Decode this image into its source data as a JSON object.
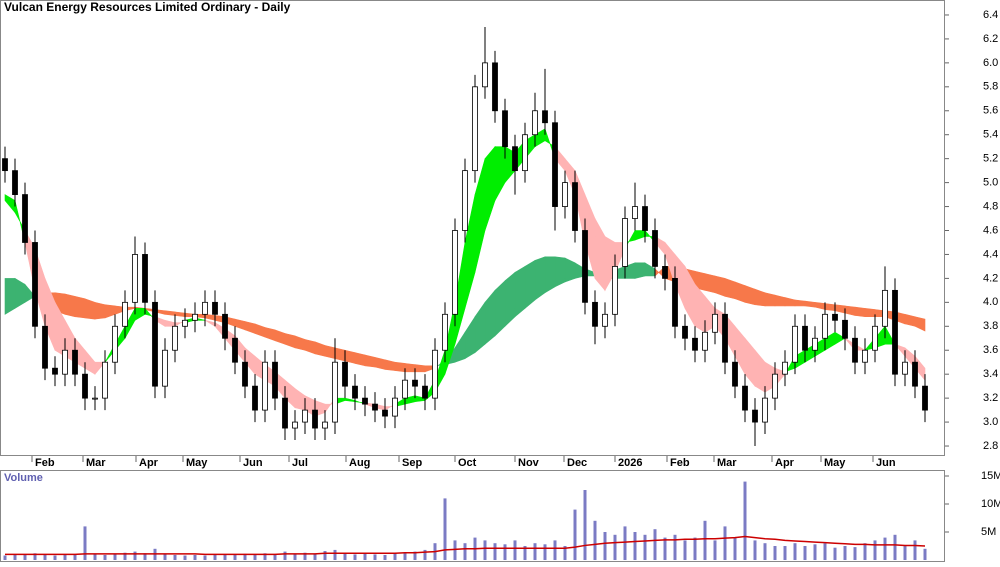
{
  "chart_data": {
    "type": "candlestick",
    "title": "Vulcan Energy Resources Limited Ordinary - Daily",
    "xlim": [
      -0.5,
      94
    ],
    "xticks": [
      {
        "value": 2.7,
        "label": "Feb"
      },
      {
        "value": 7.8,
        "label": "Mar"
      },
      {
        "value": 13.1,
        "label": "Apr"
      },
      {
        "value": 17.8,
        "label": "May"
      },
      {
        "value": 23.5,
        "label": "Jun"
      },
      {
        "value": 28.4,
        "label": "Jul"
      },
      {
        "value": 34.1,
        "label": "Aug"
      },
      {
        "value": 39.4,
        "label": "Sep"
      },
      {
        "value": 45.0,
        "label": "Oct"
      },
      {
        "value": 51.0,
        "label": "Nov"
      },
      {
        "value": 55.9,
        "label": "Dec"
      },
      {
        "value": 61.0,
        "label": "2026"
      },
      {
        "value": 66.2,
        "label": "Feb"
      },
      {
        "value": 70.9,
        "label": "Mar"
      },
      {
        "value": 76.7,
        "label": "Apr"
      },
      {
        "value": 81.6,
        "label": "May"
      },
      {
        "value": 86.8,
        "label": "Jun"
      }
    ],
    "ylim": [
      2.7,
      6.5
    ],
    "yticks": [
      2.8,
      {
        "value": 3.0,
        "label": "3.0"
      },
      3.2,
      3.4,
      3.6,
      3.8,
      {
        "value": 4.0,
        "label": "4.0"
      },
      4.2,
      4.4,
      4.6,
      4.8,
      {
        "value": 5.0,
        "label": "5.0"
      },
      5.2,
      5.4,
      5.6,
      5.8,
      {
        "value": 6.0,
        "label": "6.0"
      },
      6.2,
      6.4
    ],
    "open": [
      5.2,
      5.1,
      4.9,
      4.5,
      3.8,
      3.45,
      3.4,
      3.6,
      3.4,
      3.2,
      3.2,
      3.5,
      3.8,
      4.0,
      4.4,
      4.0,
      3.3,
      3.6,
      3.8,
      3.85,
      3.9,
      4.0,
      3.9,
      3.7,
      3.5,
      3.3,
      3.1,
      3.5,
      3.2,
      2.95,
      3.0,
      3.1,
      2.95,
      3.0,
      3.5,
      3.3,
      3.2,
      3.15,
      3.1,
      3.05,
      3.2,
      3.35,
      3.3,
      3.2,
      3.6,
      3.9,
      4.6,
      5.1,
      5.8,
      6.0,
      5.6,
      5.3,
      5.1,
      5.4,
      5.6,
      5.5,
      4.8,
      5.0,
      4.6,
      4.0,
      3.8,
      3.9,
      4.3,
      4.7,
      4.8,
      4.6,
      4.3,
      4.2,
      3.8,
      3.7,
      3.6,
      3.75,
      3.9,
      3.5,
      3.3,
      3.1,
      3.0,
      3.2,
      3.4,
      3.5,
      3.8,
      3.6,
      3.7,
      3.9,
      3.85,
      3.7,
      3.5,
      3.6,
      3.8,
      4.1,
      3.4,
      3.5,
      3.3
    ],
    "high": [
      5.3,
      5.2,
      5.0,
      4.6,
      3.9,
      3.55,
      3.7,
      3.7,
      3.5,
      3.3,
      3.6,
      3.9,
      4.1,
      4.55,
      4.5,
      4.1,
      3.7,
      3.9,
      3.95,
      4.0,
      4.1,
      4.1,
      4.0,
      3.8,
      3.6,
      3.4,
      3.6,
      3.6,
      3.3,
      3.1,
      3.2,
      3.2,
      3.1,
      3.7,
      3.6,
      3.4,
      3.3,
      3.25,
      3.2,
      3.3,
      3.45,
      3.45,
      3.4,
      3.7,
      4.0,
      4.7,
      5.2,
      5.9,
      6.3,
      6.1,
      5.7,
      5.4,
      5.5,
      5.75,
      5.95,
      5.6,
      5.1,
      5.1,
      4.7,
      4.1,
      4.0,
      4.4,
      4.8,
      5.0,
      4.9,
      4.7,
      4.4,
      4.3,
      3.9,
      3.8,
      3.85,
      4.0,
      4.0,
      3.6,
      3.4,
      3.2,
      3.3,
      3.5,
      3.6,
      3.9,
      3.9,
      3.8,
      4.0,
      4.0,
      3.95,
      3.8,
      3.7,
      3.9,
      4.3,
      4.2,
      3.6,
      3.6,
      3.4
    ],
    "low": [
      5.0,
      4.8,
      4.4,
      3.7,
      3.35,
      3.3,
      3.3,
      3.3,
      3.1,
      3.1,
      3.1,
      3.4,
      3.7,
      3.9,
      3.9,
      3.2,
      3.2,
      3.5,
      3.7,
      3.75,
      3.8,
      3.8,
      3.6,
      3.4,
      3.2,
      3.0,
      3.0,
      3.1,
      2.85,
      2.85,
      2.9,
      2.85,
      2.85,
      2.9,
      3.2,
      3.1,
      3.05,
      3.0,
      2.95,
      2.95,
      3.1,
      3.2,
      3.1,
      3.1,
      3.5,
      3.8,
      4.5,
      5.0,
      5.7,
      5.5,
      5.2,
      4.9,
      5.0,
      5.3,
      5.4,
      4.6,
      4.7,
      4.5,
      3.9,
      3.65,
      3.7,
      3.8,
      4.2,
      4.6,
      4.5,
      4.2,
      4.1,
      3.7,
      3.6,
      3.5,
      3.5,
      3.65,
      3.4,
      3.2,
      3.0,
      2.8,
      2.9,
      3.1,
      3.3,
      3.4,
      3.5,
      3.5,
      3.6,
      3.75,
      3.6,
      3.4,
      3.4,
      3.5,
      3.7,
      3.3,
      3.3,
      3.2,
      3.0
    ],
    "close": [
      5.1,
      4.9,
      4.5,
      3.8,
      3.45,
      3.4,
      3.6,
      3.4,
      3.2,
      3.2,
      3.5,
      3.8,
      4.0,
      4.4,
      4.0,
      3.3,
      3.6,
      3.8,
      3.85,
      3.9,
      4.0,
      3.9,
      3.7,
      3.5,
      3.3,
      3.1,
      3.5,
      3.2,
      2.95,
      3.0,
      3.1,
      2.95,
      3.0,
      3.5,
      3.3,
      3.2,
      3.15,
      3.1,
      3.05,
      3.2,
      3.35,
      3.3,
      3.2,
      3.6,
      3.9,
      4.6,
      5.1,
      5.8,
      6.0,
      5.6,
      5.3,
      5.1,
      5.4,
      5.6,
      5.5,
      4.8,
      5.0,
      4.6,
      4.0,
      3.8,
      3.9,
      4.3,
      4.7,
      4.8,
      4.6,
      4.3,
      4.2,
      3.8,
      3.7,
      3.6,
      3.75,
      3.9,
      3.5,
      3.3,
      3.1,
      3.0,
      3.2,
      3.4,
      3.5,
      3.8,
      3.6,
      3.7,
      3.9,
      3.85,
      3.7,
      3.5,
      3.6,
      3.8,
      4.1,
      3.4,
      3.5,
      3.3,
      3.1
    ],
    "up_color": "#ffffff",
    "down_color": "#000000",
    "bands": [
      {
        "up_color": "#3cb371",
        "down_color": "#f7784a",
        "fast": [
          4.2,
          4.2,
          4.15,
          4.05,
          3.97,
          3.93,
          3.9,
          3.88,
          3.87,
          3.86,
          3.87,
          3.9,
          3.93,
          3.95,
          3.94,
          3.92,
          3.9,
          3.89,
          3.88,
          3.88,
          3.87,
          3.85,
          3.83,
          3.8,
          3.77,
          3.74,
          3.71,
          3.68,
          3.65,
          3.62,
          3.6,
          3.57,
          3.55,
          3.53,
          3.51,
          3.49,
          3.47,
          3.46,
          3.44,
          3.43,
          3.42,
          3.42,
          3.42,
          3.45,
          3.52,
          3.62,
          3.75,
          3.88,
          4.0,
          4.1,
          4.18,
          4.25,
          4.3,
          4.35,
          4.38,
          4.38,
          4.37,
          4.33,
          4.28,
          4.25,
          4.25,
          4.27,
          4.3,
          4.33,
          4.33,
          4.28,
          4.2,
          4.17,
          4.14,
          4.12,
          4.1,
          4.08,
          4.05,
          4.03,
          4.0,
          3.98,
          3.97,
          3.97,
          3.97,
          3.97,
          3.97,
          3.96,
          3.94,
          3.93,
          3.91,
          3.89,
          3.88,
          3.88,
          3.88,
          3.85,
          3.82,
          3.8,
          3.76
        ],
        "slow": [
          3.9,
          3.95,
          4.0,
          4.05,
          4.08,
          4.08,
          4.07,
          4.05,
          4.03,
          4.0,
          3.98,
          3.97,
          3.96,
          3.96,
          3.95,
          3.94,
          3.93,
          3.92,
          3.91,
          3.9,
          3.9,
          3.89,
          3.88,
          3.86,
          3.84,
          3.82,
          3.79,
          3.77,
          3.74,
          3.72,
          3.69,
          3.67,
          3.64,
          3.62,
          3.6,
          3.58,
          3.56,
          3.54,
          3.52,
          3.5,
          3.49,
          3.48,
          3.47,
          3.47,
          3.48,
          3.5,
          3.53,
          3.58,
          3.65,
          3.72,
          3.8,
          3.88,
          3.95,
          4.02,
          4.08,
          4.13,
          4.17,
          4.2,
          4.22,
          4.22,
          4.2,
          4.2,
          4.2,
          4.2,
          4.22,
          4.22,
          4.3,
          4.3,
          4.28,
          4.26,
          4.24,
          4.22,
          4.2,
          4.17,
          4.14,
          4.11,
          4.08,
          4.06,
          4.04,
          4.02,
          4.01,
          4.0,
          3.99,
          3.98,
          3.97,
          3.96,
          3.95,
          3.94,
          3.93,
          3.92,
          3.9,
          3.88,
          3.86
        ]
      },
      {
        "up_color": "#00ee00",
        "down_color": "#ffb3b3",
        "fast": [
          4.9,
          4.85,
          4.5,
          4.1,
          3.8,
          3.6,
          3.55,
          3.5,
          3.45,
          3.4,
          3.5,
          3.65,
          3.8,
          3.95,
          3.95,
          3.85,
          3.8,
          3.8,
          3.85,
          3.87,
          3.85,
          3.8,
          3.7,
          3.6,
          3.5,
          3.4,
          3.35,
          3.3,
          3.2,
          3.12,
          3.1,
          3.05,
          3.08,
          3.2,
          3.2,
          3.18,
          3.15,
          3.12,
          3.1,
          3.15,
          3.2,
          3.22,
          3.2,
          3.35,
          3.6,
          4.0,
          4.5,
          4.9,
          5.2,
          5.3,
          5.3,
          5.25,
          5.35,
          5.4,
          5.45,
          5.2,
          5.1,
          4.9,
          4.5,
          4.2,
          4.1,
          4.25,
          4.45,
          4.6,
          4.6,
          4.5,
          4.4,
          4.15,
          3.95,
          3.8,
          3.75,
          3.8,
          3.7,
          3.55,
          3.4,
          3.3,
          3.25,
          3.3,
          3.4,
          3.55,
          3.6,
          3.65,
          3.7,
          3.75,
          3.7,
          3.6,
          3.6,
          3.7,
          3.8,
          3.65,
          3.55,
          3.45,
          3.35
        ],
        "slow": [
          4.85,
          4.75,
          4.6,
          4.45,
          4.2,
          4.0,
          3.85,
          3.7,
          3.6,
          3.5,
          3.5,
          3.6,
          3.7,
          3.85,
          3.9,
          3.88,
          3.85,
          3.83,
          3.83,
          3.85,
          3.85,
          3.83,
          3.78,
          3.72,
          3.62,
          3.55,
          3.48,
          3.42,
          3.35,
          3.28,
          3.22,
          3.18,
          3.15,
          3.15,
          3.18,
          3.17,
          3.16,
          3.15,
          3.13,
          3.13,
          3.15,
          3.17,
          3.18,
          3.25,
          3.4,
          3.65,
          3.95,
          4.25,
          4.6,
          4.85,
          5.0,
          5.1,
          5.2,
          5.3,
          5.35,
          5.3,
          5.2,
          5.1,
          4.9,
          4.7,
          4.55,
          4.5,
          4.5,
          4.52,
          4.55,
          4.55,
          4.5,
          4.4,
          4.3,
          4.15,
          4.05,
          3.95,
          3.9,
          3.8,
          3.7,
          3.6,
          3.5,
          3.45,
          3.42,
          3.45,
          3.5,
          3.55,
          3.6,
          3.65,
          3.7,
          3.65,
          3.6,
          3.62,
          3.65,
          3.65,
          3.62,
          3.55,
          3.45
        ]
      }
    ],
    "volume": {
      "label": "Volume",
      "color": "#7b7bc4",
      "average_color": "#cc0000",
      "ylim": [
        0,
        16
      ],
      "yticks": [
        {
          "value": 5,
          "label": "5M"
        },
        {
          "value": 10,
          "label": "10M"
        },
        {
          "value": 15,
          "label": "15M"
        }
      ],
      "values": [
        0.8,
        0.9,
        1.0,
        1.2,
        0.9,
        0.8,
        1.0,
        0.9,
        6.0,
        1.1,
        0.9,
        1.0,
        1.3,
        1.5,
        1.2,
        2.0,
        1.0,
        0.9,
        0.8,
        0.9,
        0.8,
        0.9,
        1.0,
        0.9,
        1.1,
        1.0,
        1.2,
        1.0,
        1.5,
        1.1,
        1.3,
        1.0,
        1.6,
        1.8,
        1.2,
        1.0,
        1.1,
        1.0,
        0.9,
        1.2,
        1.3,
        1.5,
        1.8,
        3.0,
        11.0,
        3.5,
        3.0,
        4.0,
        3.5,
        3.0,
        2.8,
        3.5,
        2.5,
        3.0,
        2.8,
        3.5,
        2.5,
        9.0,
        12.5,
        7.0,
        5.0,
        4.5,
        6.0,
        5.0,
        4.5,
        5.5,
        4.0,
        4.5,
        3.5,
        4.0,
        7.0,
        3.5,
        6.0,
        4.0,
        14.0,
        3.5,
        3.0,
        2.5,
        2.5,
        3.0,
        2.5,
        2.8,
        3.0,
        2.2,
        2.5,
        2.3,
        3.0,
        3.5,
        4.0,
        4.5,
        2.5,
        3.5,
        2.0
      ],
      "average": [
        1.0,
        1.0,
        1.0,
        1.0,
        1.0,
        1.0,
        1.0,
        1.0,
        1.1,
        1.1,
        1.1,
        1.1,
        1.1,
        1.1,
        1.1,
        1.1,
        1.1,
        1.1,
        1.1,
        1.1,
        1.0,
        1.0,
        1.0,
        1.0,
        1.0,
        1.0,
        1.0,
        1.0,
        1.1,
        1.1,
        1.1,
        1.1,
        1.2,
        1.2,
        1.2,
        1.2,
        1.2,
        1.2,
        1.2,
        1.2,
        1.3,
        1.3,
        1.4,
        1.5,
        1.8,
        1.9,
        2.0,
        2.0,
        2.1,
        2.1,
        2.1,
        2.1,
        2.1,
        2.1,
        2.1,
        2.1,
        2.1,
        2.3,
        2.6,
        2.8,
        3.0,
        3.1,
        3.2,
        3.3,
        3.4,
        3.5,
        3.6,
        3.6,
        3.7,
        3.7,
        3.8,
        3.8,
        3.9,
        4.0,
        4.2,
        4.0,
        3.8,
        3.7,
        3.5,
        3.4,
        3.3,
        3.2,
        3.1,
        3.0,
        2.9,
        2.8,
        2.8,
        2.7,
        2.7,
        2.7,
        2.6,
        2.6,
        2.5
      ]
    }
  }
}
